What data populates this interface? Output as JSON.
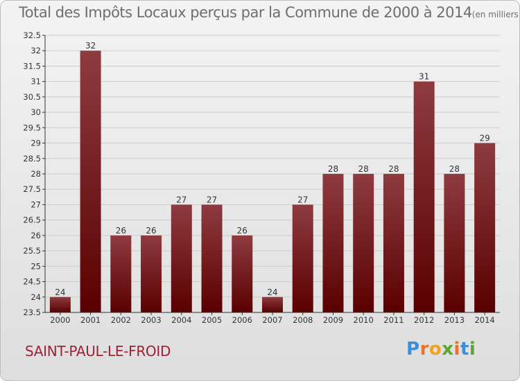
{
  "title": "Total des Impôts Locaux perçus par la Commune de 2000 à 2014",
  "unit": "(en milliers d'€)",
  "commune": "SAINT-PAUL-LE-FROID",
  "brand": {
    "text": "Proxiti",
    "letter_colors": [
      "#3c8fd6",
      "#e8732a",
      "#f0a21e",
      "#5aa62e",
      "#e8732a",
      "#3c8fd6",
      "#5aa62e"
    ]
  },
  "colors": {
    "bar_top": "#8e3b40",
    "bar_bottom": "#5a0000",
    "axis": "#333333",
    "grid": "#cccccc",
    "text": "#333333"
  },
  "chart_data": {
    "type": "bar",
    "title": "Total des Impôts Locaux perçus par la Commune de 2000 à 2014",
    "xlabel": "",
    "ylabel": "",
    "categories": [
      "2000",
      "2001",
      "2002",
      "2003",
      "2004",
      "2005",
      "2006",
      "2007",
      "2008",
      "2009",
      "2010",
      "2011",
      "2012",
      "2013",
      "2014"
    ],
    "values": [
      24,
      32,
      26,
      26,
      27,
      27,
      26,
      24,
      27,
      28,
      28,
      28,
      31,
      28,
      29
    ],
    "ylim": [
      23.5,
      32.5
    ],
    "yticks": [
      "23.5",
      "24",
      "24.5",
      "25",
      "25.5",
      "26",
      "26.5",
      "27",
      "27.5",
      "28",
      "28.5",
      "29",
      "29.5",
      "30",
      "30.5",
      "31",
      "31.5",
      "32",
      "32.5"
    ],
    "grid": true
  }
}
